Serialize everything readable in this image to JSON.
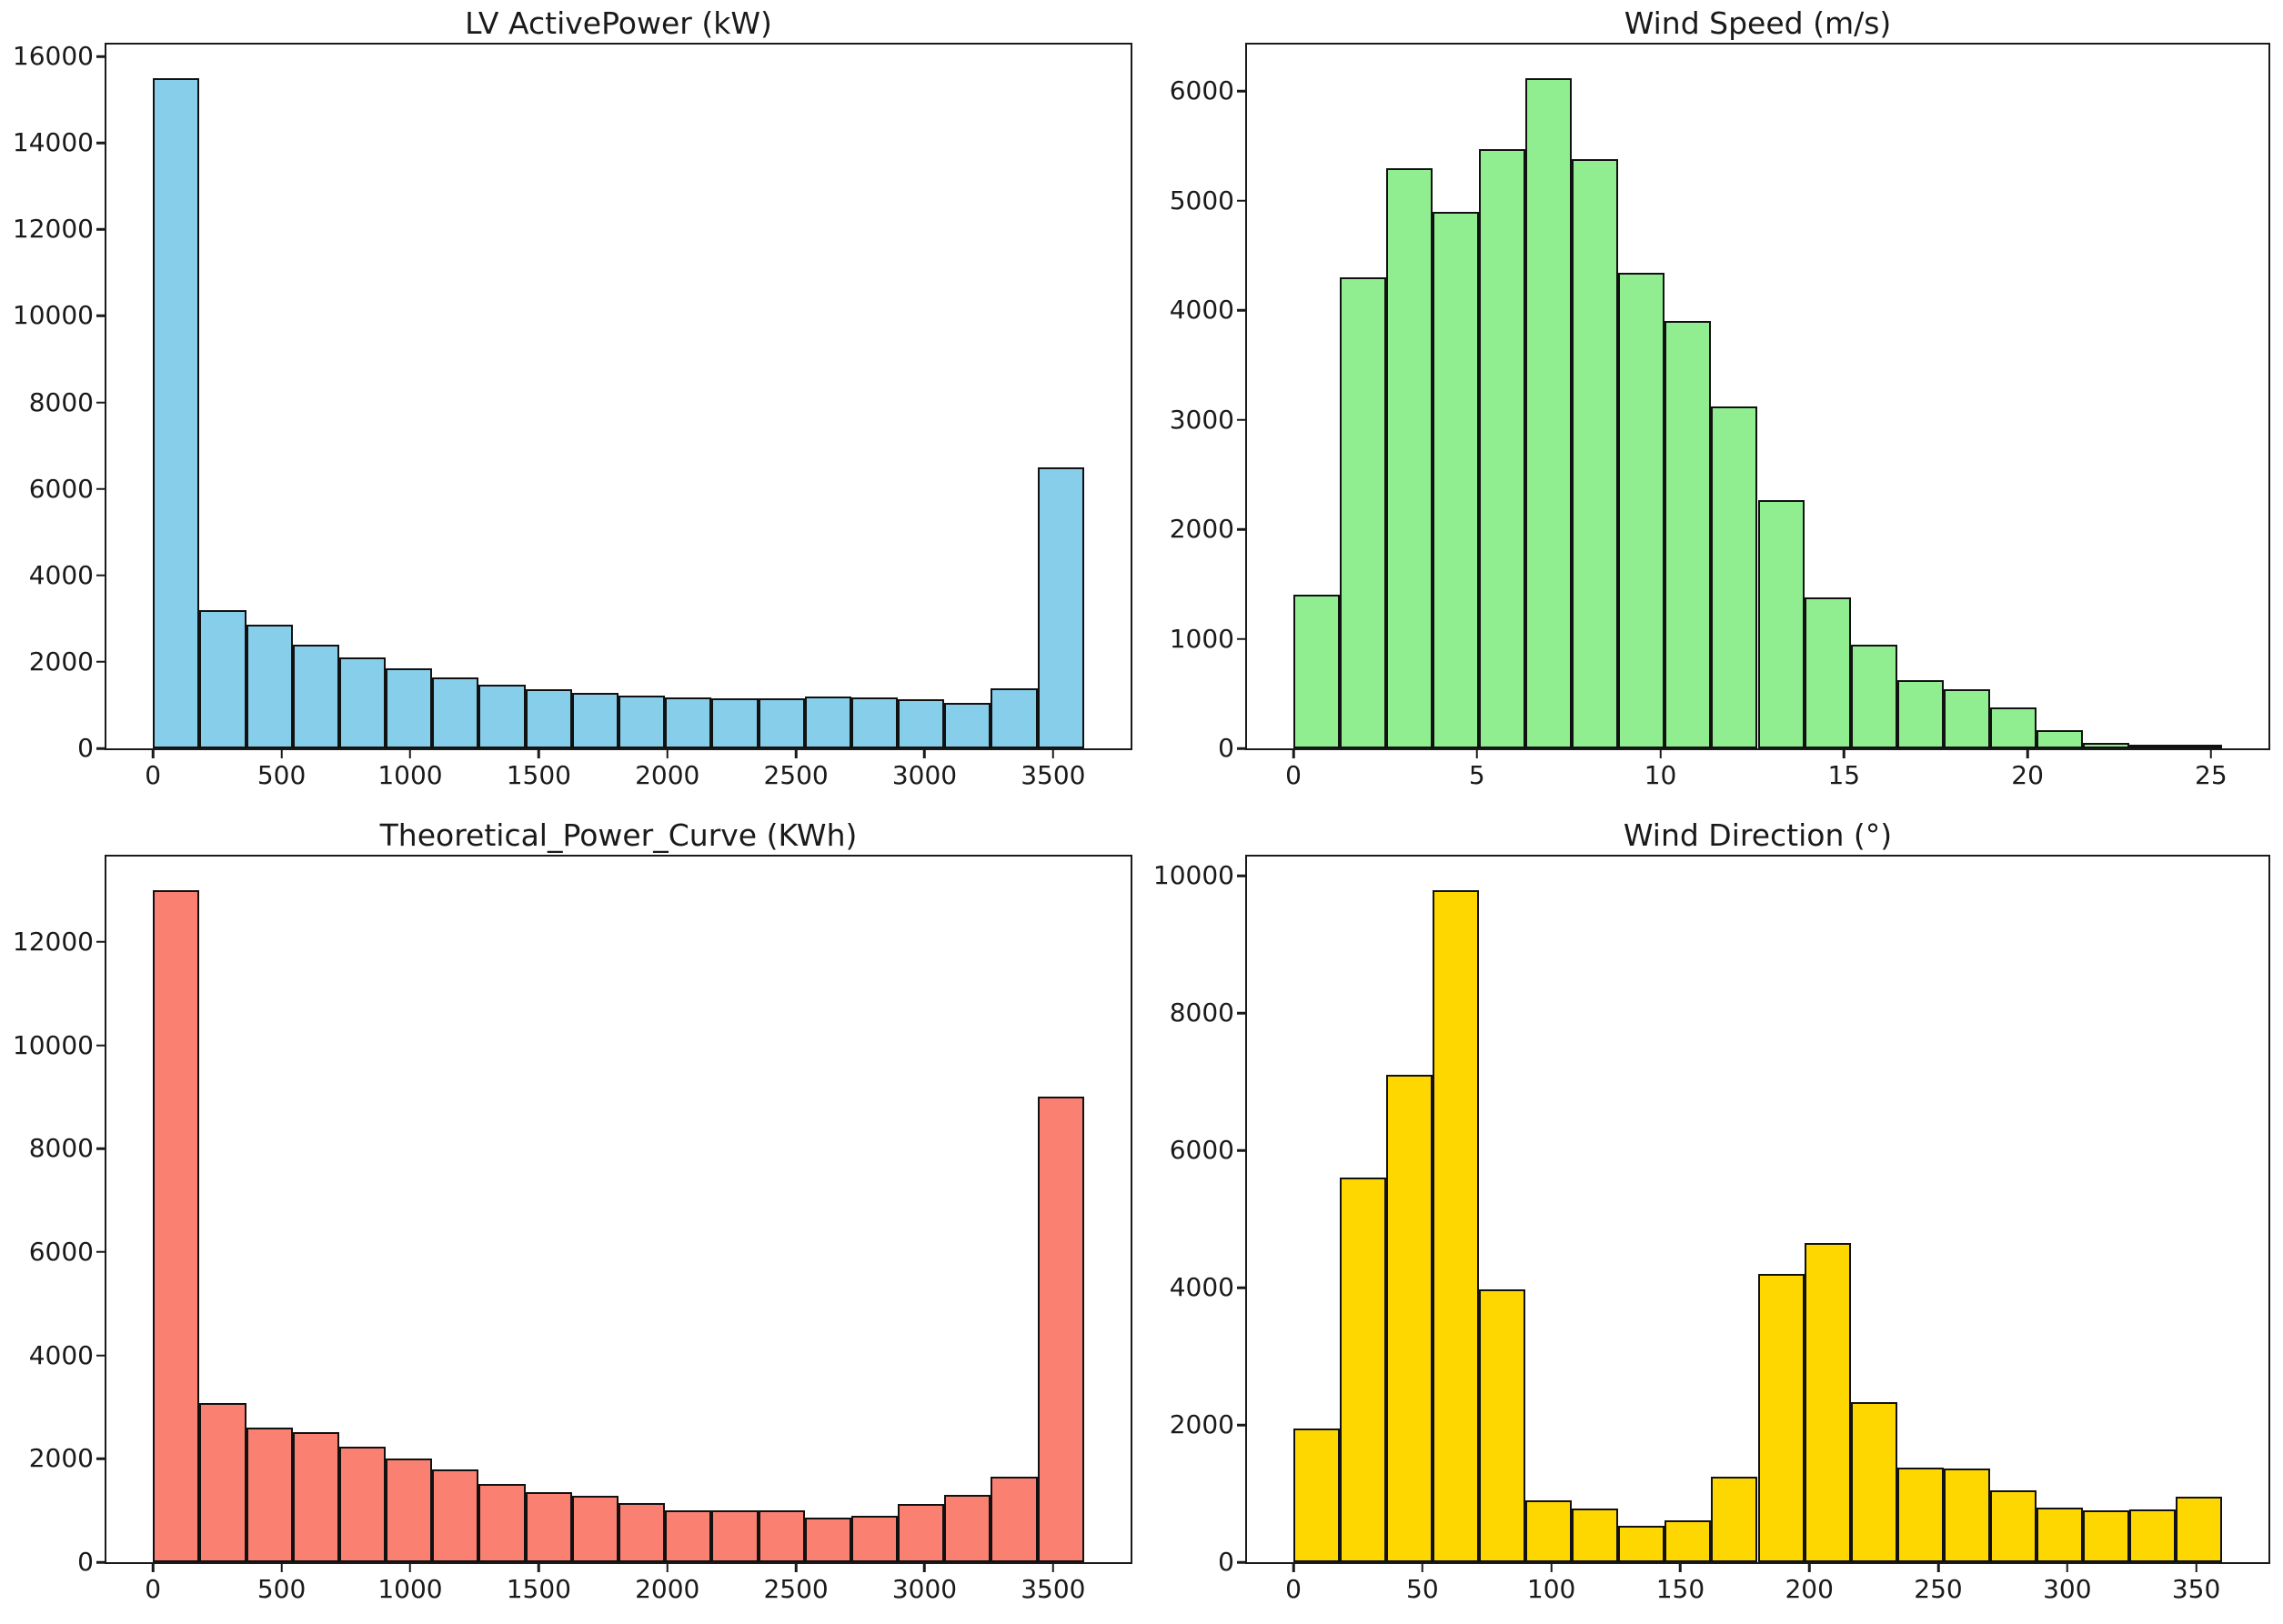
{
  "figure": {
    "background": "#ffffff",
    "grid_layout": "2x2",
    "grid_visible": false,
    "legend": null
  },
  "chart_data": [
    {
      "type": "bar",
      "subtype": "histogram",
      "title": "LV ActivePower (kW)",
      "color": "#87CEEB",
      "edge_color": "#111111",
      "bin_start": 0,
      "bin_width": 181,
      "counts": [
        15500,
        3200,
        2850,
        2400,
        2100,
        1850,
        1650,
        1480,
        1370,
        1280,
        1230,
        1180,
        1160,
        1150,
        1200,
        1180,
        1140,
        1060,
        1380,
        6500
      ],
      "x_ticks": [
        0,
        500,
        1000,
        1500,
        2000,
        2500,
        3000,
        3500
      ],
      "y_ticks": [
        0,
        2000,
        4000,
        6000,
        8000,
        10000,
        12000,
        14000,
        16000
      ],
      "xlim": [
        -181,
        3801
      ],
      "ylim": [
        0,
        16275
      ]
    },
    {
      "type": "bar",
      "subtype": "histogram",
      "title": "Wind Speed (m/s)",
      "color": "#90EE90",
      "edge_color": "#111111",
      "bin_start": 0,
      "bin_width": 1.265,
      "counts": [
        1400,
        4300,
        5300,
        4900,
        5470,
        6120,
        5380,
        4340,
        3900,
        3120,
        2270,
        1380,
        950,
        620,
        540,
        370,
        170,
        50,
        25,
        10
      ],
      "x_ticks": [
        0,
        5,
        10,
        15,
        20,
        25
      ],
      "y_ticks": [
        0,
        1000,
        2000,
        3000,
        4000,
        5000,
        6000
      ],
      "xlim": [
        -1.265,
        26.565
      ],
      "ylim": [
        0,
        6426
      ]
    },
    {
      "type": "bar",
      "subtype": "histogram",
      "title": "Theoretical_Power_Curve (KWh)",
      "color": "#FA8072",
      "edge_color": "#111111",
      "bin_start": 0,
      "bin_width": 181,
      "counts": [
        13000,
        3080,
        2600,
        2520,
        2230,
        2000,
        1790,
        1510,
        1350,
        1290,
        1140,
        1010,
        1000,
        1010,
        855,
        890,
        1130,
        1300,
        1650,
        9000
      ],
      "x_ticks": [
        0,
        500,
        1000,
        1500,
        2000,
        2500,
        3000,
        3500
      ],
      "y_ticks": [
        0,
        2000,
        4000,
        6000,
        8000,
        10000,
        12000
      ],
      "xlim": [
        -181,
        3801
      ],
      "ylim": [
        0,
        13650
      ]
    },
    {
      "type": "bar",
      "subtype": "histogram",
      "title": "Wind Direction (°)",
      "color": "#FFD700",
      "edge_color": "#111111",
      "bin_start": 0,
      "bin_width": 18,
      "counts": [
        1950,
        5600,
        7100,
        9790,
        3970,
        900,
        780,
        530,
        610,
        1250,
        4200,
        4650,
        2330,
        1380,
        1360,
        1050,
        800,
        760,
        770,
        950
      ],
      "x_ticks": [
        0,
        50,
        100,
        150,
        200,
        250,
        300,
        350
      ],
      "y_ticks": [
        0,
        2000,
        4000,
        6000,
        8000,
        10000
      ],
      "xlim": [
        -18,
        378
      ],
      "ylim": [
        0,
        10280
      ]
    }
  ]
}
